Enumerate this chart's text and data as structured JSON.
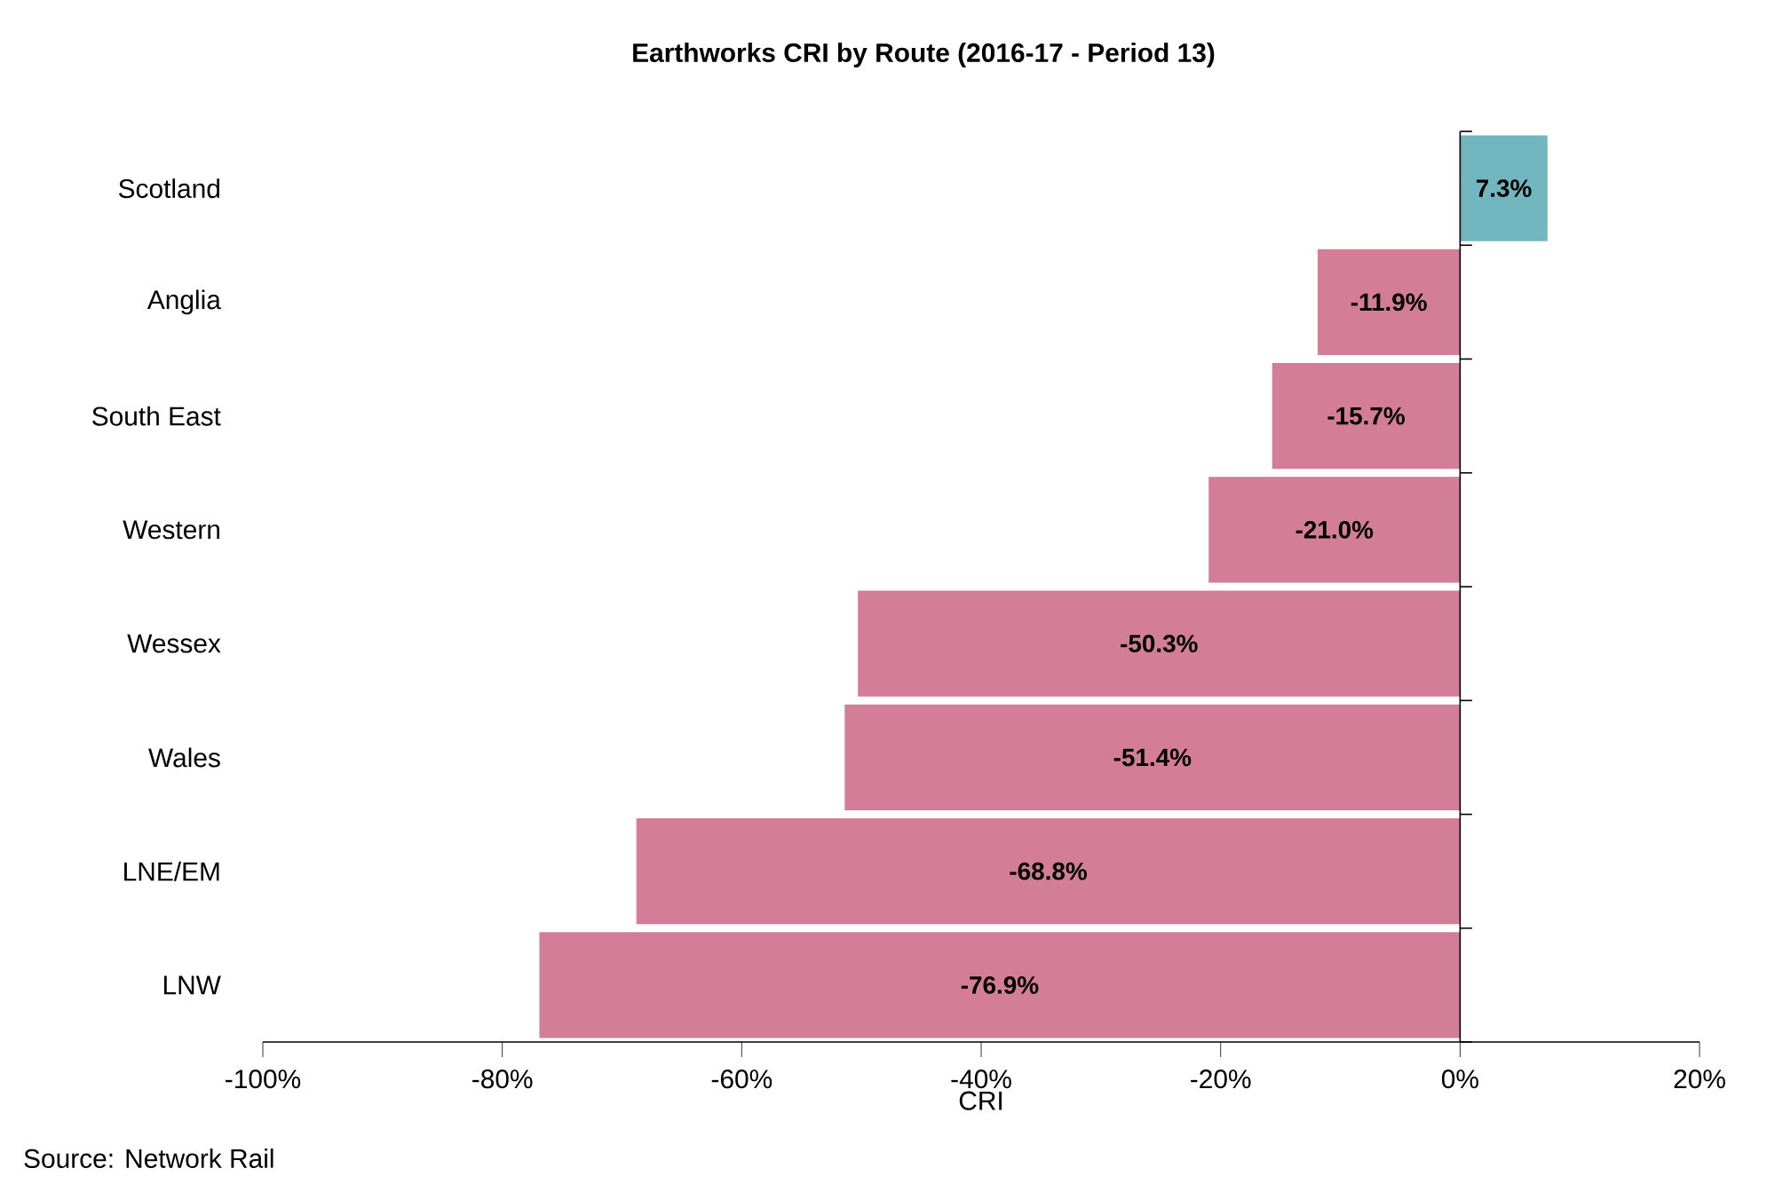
{
  "chart_data": {
    "type": "bar",
    "orientation": "horizontal",
    "title": "Earthworks CRI by Route (2016-17  - Period 13)",
    "xlabel": "CRI",
    "categories": [
      "Scotland",
      "Anglia",
      "South East",
      "Western",
      "Wessex",
      "Wales",
      "LNE/EM",
      "LNW"
    ],
    "values": [
      7.3,
      -11.9,
      -15.7,
      -21.0,
      -50.3,
      -51.4,
      -68.8,
      -76.9
    ],
    "colors": [
      "#72b7bf",
      "#d47d98",
      "#d47d98",
      "#d47d98",
      "#d47d98",
      "#d47d98",
      "#d47d98",
      "#d47d98"
    ],
    "value_labels": [
      "7.3%",
      "-11.9%",
      "-15.7%",
      "-21.0%",
      "-50.3%",
      "-51.4%",
      "-68.8%",
      "-76.9%"
    ],
    "xlim": [
      -100,
      20
    ],
    "xticks": [
      {
        "value": -100,
        "label": "-100%"
      },
      {
        "value": -80,
        "label": "-80%"
      },
      {
        "value": -60,
        "label": "-60%"
      },
      {
        "value": -40,
        "label": "-40%"
      },
      {
        "value": -20,
        "label": "-20%"
      },
      {
        "value": 0,
        "label": "0%"
      },
      {
        "value": 20,
        "label": "20%"
      }
    ],
    "annotations": [
      "Source: Network Rail"
    ]
  }
}
